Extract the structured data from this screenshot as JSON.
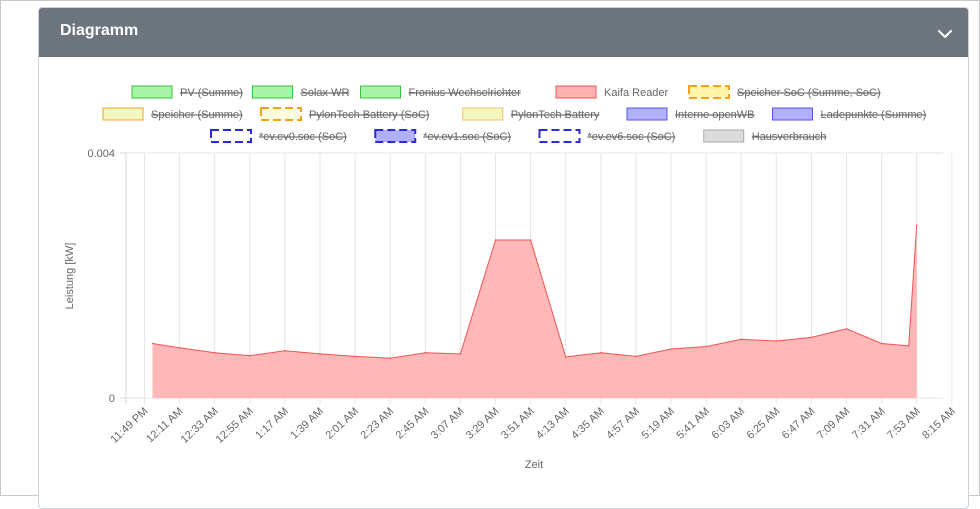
{
  "card": {
    "title": "Diagramm",
    "collapse_icon": "chevron-down-icon"
  },
  "chart_data": {
    "type": "area",
    "xlabel": "Zeit",
    "ylabel": "Leistung [kW]",
    "ylim": [
      0,
      0.004
    ],
    "y_ticks": [
      "0.004",
      "0"
    ],
    "x_ticks": [
      "11:49 PM",
      "12:11 AM",
      "12:33 AM",
      "12:55 AM",
      "1:17 AM",
      "1:39 AM",
      "2:01 AM",
      "2:23 AM",
      "2:45 AM",
      "3:07 AM",
      "3:29 AM",
      "3:51 AM",
      "4:13 AM",
      "4:35 AM",
      "4:57 AM",
      "5:19 AM",
      "5:41 AM",
      "6:03 AM",
      "6:25 AM",
      "6:47 AM",
      "7:09 AM",
      "7:31 AM",
      "7:53 AM",
      "8:15 AM"
    ],
    "grid": true,
    "legend": [
      {
        "name": "PV (Summe)",
        "hidden": true,
        "fill": "#a8f5a8",
        "stroke": "#3cc43c",
        "dashed": false
      },
      {
        "name": "Solax WR",
        "hidden": true,
        "fill": "#a8f5a8",
        "stroke": "#3cc43c",
        "dashed": false
      },
      {
        "name": "Fronius Wechselrichter",
        "hidden": true,
        "fill": "#a8f5a8",
        "stroke": "#3cc43c",
        "dashed": false
      },
      {
        "name": "Kaifa Reader",
        "hidden": false,
        "fill": "#ffb3b3",
        "stroke": "#ee5555",
        "dashed": false
      },
      {
        "name": "Speicher SoC (Summe, SoC)",
        "hidden": true,
        "fill": "#fff5a8",
        "stroke": "#f5a020",
        "dashed": true
      },
      {
        "name": "Speicher (Summe)",
        "hidden": true,
        "fill": "#f3f8c2",
        "stroke": "#f5a020",
        "dashed": false
      },
      {
        "name": "PylonTech Battery (SoC)",
        "hidden": true,
        "fill": "#fdfcdc",
        "stroke": "#f5a020",
        "dashed": true
      },
      {
        "name": "PylonTech Battery",
        "hidden": true,
        "fill": "#f3f8c2",
        "stroke": "#f5c060",
        "dashed": false
      },
      {
        "name": "Interne openWB",
        "hidden": true,
        "fill": "#b0b0ff",
        "stroke": "#5555ee",
        "dashed": false
      },
      {
        "name": "Ladepunkte (Summe)",
        "hidden": true,
        "fill": "#b0b0ff",
        "stroke": "#5555ee",
        "dashed": false
      },
      {
        "name": "*ev.ev0.soc (SoC)",
        "hidden": true,
        "fill": "#ffffff",
        "stroke": "#2a2add",
        "dashed": true
      },
      {
        "name": "*ev.ev1.soc (SoC)",
        "hidden": true,
        "fill": "#b0b0ff",
        "stroke": "#2a2add",
        "dashed": true
      },
      {
        "name": "*ev.ev6.soc (SoC)",
        "hidden": true,
        "fill": "#ffffff",
        "stroke": "#2a2add",
        "dashed": true
      },
      {
        "name": "Hausverbrauch",
        "hidden": true,
        "fill": "#dcdcdc",
        "stroke": "#a8a8a8",
        "dashed": false
      }
    ],
    "series": [
      {
        "name": "Kaifa Reader",
        "color": "#ee5555",
        "fill": "#ffb3b3",
        "x": [
          "11:54 PM",
          "12:11 AM",
          "12:33 AM",
          "12:55 AM",
          "1:17 AM",
          "1:39 AM",
          "2:01 AM",
          "2:23 AM",
          "2:45 AM",
          "3:07 AM",
          "3:29 AM",
          "3:51 AM",
          "4:13 AM",
          "4:35 AM",
          "4:57 AM",
          "5:19 AM",
          "5:41 AM",
          "6:03 AM",
          "6:25 AM",
          "6:47 AM",
          "7:09 AM",
          "7:31 AM",
          "7:48 AM",
          "7:53 AM"
        ],
        "values": [
          0.00089,
          0.00082,
          0.00074,
          0.00069,
          0.00077,
          0.00072,
          0.00068,
          0.00065,
          0.00074,
          0.00072,
          0.00258,
          0.00258,
          0.00067,
          0.00074,
          0.00068,
          0.0008,
          0.00084,
          0.00096,
          0.00093,
          0.00099,
          0.00113,
          0.00089,
          0.00085,
          0.00282
        ]
      }
    ]
  }
}
